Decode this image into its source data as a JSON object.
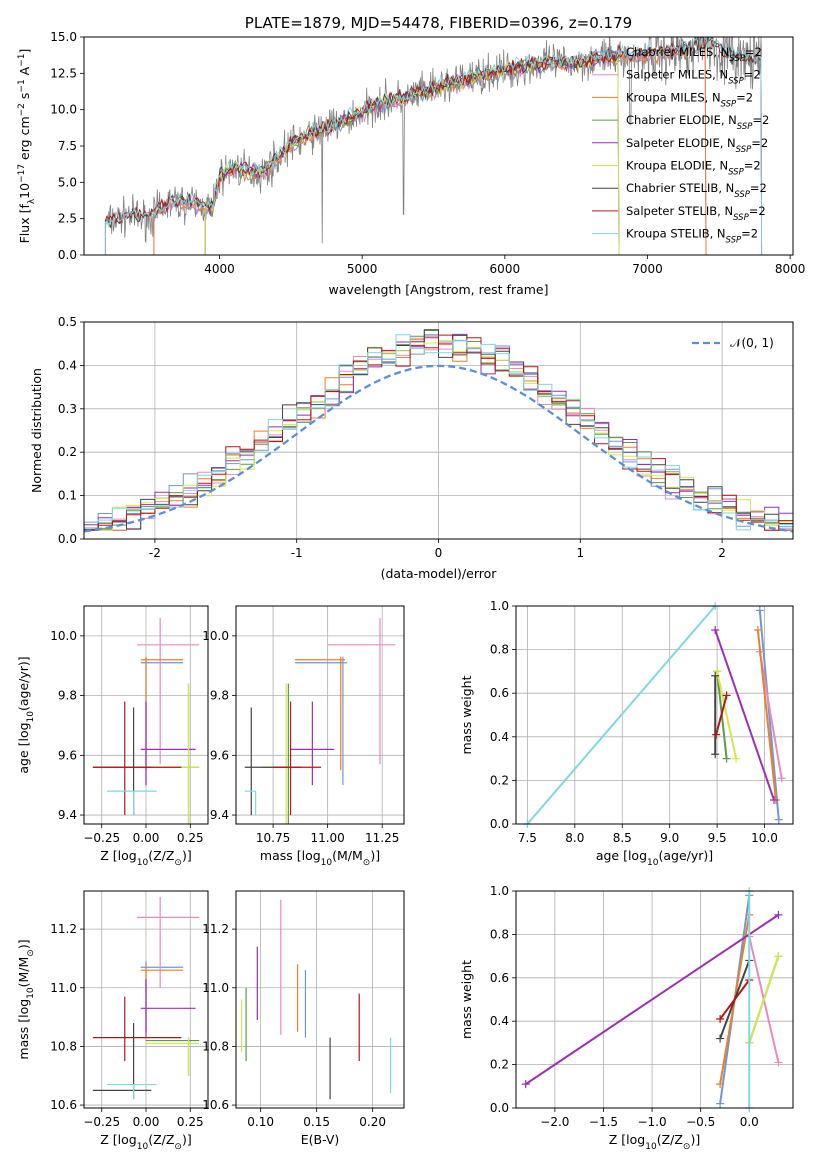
{
  "colors": {
    "Chabrier MILES": "#6f97d8",
    "Salpeter MILES": "#e68ac3",
    "Kroupa MILES": "#ec7f2a",
    "Chabrier ELODIE": "#5c9a4c",
    "Salpeter ELODIE": "#9b2fb3",
    "Kroupa ELODIE": "#d4e84d",
    "Chabrier STELIB": "#444444",
    "Salpeter STELIB": "#b01818",
    "Kroupa STELIB": "#7fd7e0",
    "data": "#808080",
    "gaussian": "#5b8fd8"
  },
  "chart_data": [
    {
      "id": "spectrum",
      "type": "line",
      "title": "PLATE=1879, MJD=54478, FIBERID=0396, z=0.179",
      "xlabel": "wavelength [Angstrom, rest frame]",
      "ylabel": "Flux [f",
      "ylabel_sub": "λ",
      "ylabel_rest": "10",
      "ylabel_sup": "−17",
      "ylabel_units": " erg cm",
      "ylabel_sup2": "−2",
      "ylabel_units2": " s",
      "ylabel_sup3": "−1",
      "ylabel_units3": " A",
      "ylabel_sup4": "−1",
      "ylabel_end": "]",
      "xlim": [
        3050,
        8020
      ],
      "ylim": [
        0,
        15
      ],
      "xticks": [
        4000,
        5000,
        6000,
        7000,
        8000
      ],
      "yticks": [
        0.0,
        2.5,
        5.0,
        7.5,
        10.0,
        12.5,
        15.0
      ],
      "ytick_labels": [
        "0.0",
        "2.5",
        "5.0",
        "7.5",
        "10.0",
        "12.5",
        "15.0"
      ],
      "legend_position": "upper right",
      "legend": [
        {
          "main": "Chabrier MILES, N",
          "sub": "SSP",
          "tail": "=2"
        },
        {
          "main": "Salpeter MILES, N",
          "sub": "SSP",
          "tail": "=2"
        },
        {
          "main": "Kroupa MILES, N",
          "sub": "SSP",
          "tail": "=2"
        },
        {
          "main": "Chabrier ELODIE, N",
          "sub": "SSP",
          "tail": "=2"
        },
        {
          "main": "Salpeter ELODIE, N",
          "sub": "SSP",
          "tail": "=2"
        },
        {
          "main": "Kroupa ELODIE, N",
          "sub": "SSP",
          "tail": "=2"
        },
        {
          "main": "Chabrier STELIB, N",
          "sub": "SSP",
          "tail": "=2"
        },
        {
          "main": "Salpeter STELIB, N",
          "sub": "SSP",
          "tail": "=2"
        },
        {
          "main": "Kroupa STELIB, N",
          "sub": "SSP",
          "tail": "=2"
        }
      ],
      "model_range": {
        "MILES": [
          3540,
          7410
        ],
        "ELODIE": [
          3900,
          6800
        ],
        "STELIB": [
          3200,
          7800
        ]
      },
      "continuum": [
        [
          3200,
          2.2
        ],
        [
          3350,
          2.7
        ],
        [
          3500,
          2.5
        ],
        [
          3650,
          3.6
        ],
        [
          3800,
          3.6
        ],
        [
          3950,
          3.2
        ],
        [
          4000,
          5.3
        ],
        [
          4100,
          6.0
        ],
        [
          4300,
          5.6
        ],
        [
          4500,
          7.6
        ],
        [
          4700,
          8.6
        ],
        [
          4900,
          9.3
        ],
        [
          5100,
          10.4
        ],
        [
          5300,
          10.8
        ],
        [
          5500,
          11.4
        ],
        [
          5700,
          12.0
        ],
        [
          5900,
          12.5
        ],
        [
          6100,
          12.9
        ],
        [
          6300,
          13.2
        ],
        [
          6500,
          13.2
        ],
        [
          6700,
          13.6
        ],
        [
          6900,
          13.7
        ],
        [
          7100,
          13.9
        ],
        [
          7300,
          14.2
        ],
        [
          7400,
          14.8
        ],
        [
          7600,
          13.6
        ],
        [
          7800,
          13.3
        ]
      ]
    },
    {
      "id": "residual-hist",
      "type": "histogram",
      "xlabel": "(data-model)/error",
      "ylabel": "Normed distribution",
      "xlim": [
        -2.5,
        2.5
      ],
      "ylim": [
        0,
        0.5
      ],
      "xticks": [
        -2,
        -1,
        0,
        1,
        2
      ],
      "yticks": [
        0.0,
        0.1,
        0.2,
        0.3,
        0.4,
        0.5
      ],
      "ytick_labels": [
        "0.0",
        "0.1",
        "0.2",
        "0.3",
        "0.4",
        "0.5"
      ],
      "legend": "𝒩(0, 1)",
      "legend_position": "upper right",
      "gaussian": {
        "mu": 0,
        "sigma": 1
      },
      "bin_width": 0.1
    },
    {
      "id": "age-vs-z",
      "type": "scatter",
      "xlabel_main": "Z [log",
      "xlabel_sub": "10",
      "xlabel_rest": "(Z/Z",
      "xlabel_sub2": "⊙",
      "xlabel_end": ")]",
      "ylabel_main": "age  [log",
      "ylabel_sub": "10",
      "ylabel_rest": "(age/yr)]",
      "xlim": [
        -0.35,
        0.35
      ],
      "ylim": [
        9.37,
        10.1
      ],
      "xticks": [
        -0.25,
        0.0,
        0.25
      ],
      "xtick_labels": [
        "−0.25",
        "0.00",
        "0.25"
      ],
      "yticks": [
        9.4,
        9.6,
        9.8,
        10.0
      ],
      "ytick_labels": [
        "9.4",
        "9.6",
        "9.8",
        "10.0"
      ]
    },
    {
      "id": "age-vs-mass",
      "type": "scatter",
      "xlabel_main": "mass [log",
      "xlabel_sub": "10",
      "xlabel_rest": "(M/M",
      "xlabel_sub2": "⊙",
      "xlabel_end": ")]",
      "xlim": [
        10.58,
        11.35
      ],
      "ylim": [
        9.37,
        10.1
      ],
      "xticks": [
        10.75,
        11.0,
        11.25
      ],
      "xtick_labels": [
        "10.75",
        "11.00",
        "11.25"
      ],
      "yticks": [
        9.4,
        9.6,
        9.8,
        10.0
      ],
      "ytick_labels": [
        "9.4",
        "9.6",
        "9.8",
        "10.0"
      ]
    },
    {
      "id": "weight-vs-age",
      "type": "line",
      "xlabel_main": "age  [log",
      "xlabel_sub": "10",
      "xlabel_rest": "(age/yr)]",
      "ylabel": "mass weight",
      "xlim": [
        7.38,
        10.3
      ],
      "ylim": [
        0,
        1
      ],
      "xticks": [
        7.5,
        8.0,
        8.5,
        9.0,
        9.5,
        10.0
      ],
      "xtick_labels": [
        "7.5",
        "8.0",
        "8.5",
        "9.0",
        "9.5",
        "10.0"
      ],
      "yticks": [
        0.0,
        0.2,
        0.4,
        0.6,
        0.8,
        1.0
      ],
      "ytick_labels": [
        "0.0",
        "0.2",
        "0.4",
        "0.6",
        "0.8",
        "1.0"
      ],
      "series": [
        {
          "model": "Chabrier MILES",
          "x": [
            9.95,
            10.15
          ],
          "y": [
            0.98,
            0.02
          ]
        },
        {
          "model": "Salpeter MILES",
          "x": [
            9.95,
            10.18
          ],
          "y": [
            0.79,
            0.21
          ]
        },
        {
          "model": "Kroupa MILES",
          "x": [
            9.93,
            10.12
          ],
          "y": [
            0.89,
            0.11
          ]
        },
        {
          "model": "Chabrier ELODIE",
          "x": [
            9.5,
            9.6
          ],
          "y": [
            0.7,
            0.3
          ]
        },
        {
          "model": "Salpeter ELODIE",
          "x": [
            9.48,
            10.1
          ],
          "y": [
            0.89,
            0.11
          ]
        },
        {
          "model": "Kroupa ELODIE",
          "x": [
            9.5,
            9.7
          ],
          "y": [
            0.7,
            0.3
          ]
        },
        {
          "model": "Chabrier STELIB",
          "x": [
            9.48,
            9.48
          ],
          "y": [
            0.68,
            0.32
          ]
        },
        {
          "model": "Salpeter STELIB",
          "x": [
            9.49,
            9.6
          ],
          "y": [
            0.41,
            0.59
          ]
        },
        {
          "model": "Kroupa STELIB",
          "x": [
            7.5,
            9.48
          ],
          "y": [
            0.0,
            1.0
          ]
        }
      ]
    },
    {
      "id": "mass-vs-z",
      "type": "scatter",
      "xlabel_main": "Z [log",
      "xlabel_sub": "10",
      "xlabel_rest": "(Z/Z",
      "xlabel_sub2": "⊙",
      "xlabel_end": ")]",
      "ylabel_main": "mass [log",
      "ylabel_sub": "10",
      "ylabel_rest": "(M/M",
      "ylabel_sub2": "⊙",
      "ylabel_end": ")]",
      "xlim": [
        -0.35,
        0.35
      ],
      "ylim": [
        10.59,
        11.33
      ],
      "xticks": [
        -0.25,
        0.0,
        0.25
      ],
      "xtick_labels": [
        "−0.25",
        "0.00",
        "0.25"
      ],
      "yticks": [
        10.6,
        10.8,
        11.0,
        11.2
      ],
      "ytick_labels": [
        "10.6",
        "10.8",
        "11.0",
        "11.2"
      ]
    },
    {
      "id": "mass-vs-ebv",
      "type": "errorbar",
      "xlabel": "E(B-V)",
      "xlim": [
        0.078,
        0.228
      ],
      "ylim": [
        10.59,
        11.33
      ],
      "xticks": [
        0.1,
        0.15,
        0.2
      ],
      "xtick_labels": [
        "0.10",
        "0.15",
        "0.20"
      ],
      "yticks": [
        10.6,
        10.8,
        11.0,
        11.2
      ],
      "ytick_labels": [
        "10.6",
        "10.8",
        "11.0",
        "11.2"
      ]
    },
    {
      "id": "weight-vs-z",
      "type": "line",
      "xlabel_main": "Z [log",
      "xlabel_sub": "10",
      "xlabel_rest": "(Z/Z",
      "xlabel_sub2": "⊙",
      "xlabel_end": ")]",
      "ylabel": "mass weight",
      "xlim": [
        -2.4,
        0.45
      ],
      "ylim": [
        0,
        1
      ],
      "xticks": [
        -2.0,
        -1.5,
        -1.0,
        -0.5,
        0.0
      ],
      "xtick_labels": [
        "−2.0",
        "−1.5",
        "−1.0",
        "−0.5",
        "0.0"
      ],
      "yticks": [
        0.0,
        0.2,
        0.4,
        0.6,
        0.8,
        1.0
      ],
      "ytick_labels": [
        "0.0",
        "0.2",
        "0.4",
        "0.6",
        "0.8",
        "1.0"
      ],
      "series": [
        {
          "model": "Chabrier MILES",
          "x": [
            -0.3,
            0.0
          ],
          "y": [
            0.02,
            0.98
          ]
        },
        {
          "model": "Salpeter MILES",
          "x": [
            0.0,
            0.3
          ],
          "y": [
            0.79,
            0.21
          ]
        },
        {
          "model": "Kroupa MILES",
          "x": [
            -0.3,
            0.0
          ],
          "y": [
            0.11,
            0.89
          ]
        },
        {
          "model": "Chabrier ELODIE",
          "x": [
            0.0,
            0.3
          ],
          "y": [
            0.3,
            0.7
          ]
        },
        {
          "model": "Salpeter ELODIE",
          "x": [
            -2.3,
            0.3
          ],
          "y": [
            0.11,
            0.89
          ]
        },
        {
          "model": "Kroupa ELODIE",
          "x": [
            0.0,
            0.3
          ],
          "y": [
            0.3,
            0.7
          ]
        },
        {
          "model": "Chabrier STELIB",
          "x": [
            -0.3,
            0.0
          ],
          "y": [
            0.32,
            0.68
          ]
        },
        {
          "model": "Salpeter STELIB",
          "x": [
            -0.3,
            0.0
          ],
          "y": [
            0.41,
            0.59
          ]
        },
        {
          "model": "Kroupa STELIB",
          "x": [
            0.0,
            0.0
          ],
          "y": [
            0.0,
            1.0
          ]
        }
      ]
    }
  ],
  "fits": [
    {
      "model": "Chabrier MILES",
      "Z": 0.0,
      "Z_lo": -0.03,
      "Z_hi": 0.21,
      "age": 9.91,
      "age_lo": 9.5,
      "age_hi": 9.93,
      "mass": 11.07,
      "mass_lo": 10.85,
      "mass_hi": 11.09,
      "ebv": 0.14,
      "ebv_lo": 10.83,
      "ebv_hi": 11.06
    },
    {
      "model": "Salpeter MILES",
      "Z": 0.08,
      "Z_lo": -0.05,
      "Z_hi": 0.3,
      "age": 9.97,
      "age_lo": 9.57,
      "age_hi": 10.06,
      "mass": 11.24,
      "mass_lo": 11.0,
      "mass_hi": 11.31,
      "ebv": 0.118,
      "ebv_lo": 10.84,
      "ebv_hi": 11.3
    },
    {
      "model": "Kroupa MILES",
      "Z": 0.0,
      "Z_lo": -0.03,
      "Z_hi": 0.21,
      "age": 9.92,
      "age_lo": 9.55,
      "age_hi": 9.93,
      "mass": 11.06,
      "mass_lo": 10.85,
      "mass_hi": 11.08,
      "ebv": 0.133,
      "ebv_lo": 10.85,
      "ebv_hi": 11.08
    },
    {
      "model": "Chabrier ELODIE",
      "Z": 0.24,
      "Z_lo": 0.0,
      "Z_hi": 0.3,
      "age": 9.56,
      "age_lo": 9.28,
      "age_hi": 9.84,
      "mass": 10.82,
      "mass_lo": 10.7,
      "mass_hi": 10.83,
      "ebv": 0.087,
      "ebv_lo": 10.75,
      "ebv_hi": 11.0
    },
    {
      "model": "Salpeter ELODIE",
      "Z": 0.0,
      "Z_lo": -0.03,
      "Z_hi": 0.28,
      "age": 9.62,
      "age_lo": 9.5,
      "age_hi": 9.78,
      "mass": 10.93,
      "mass_lo": 10.83,
      "mass_hi": 11.03,
      "ebv": 0.097,
      "ebv_lo": 10.89,
      "ebv_hi": 11.14
    },
    {
      "model": "Kroupa ELODIE",
      "Z": 0.24,
      "Z_lo": 0.0,
      "Z_hi": 0.3,
      "age": 9.56,
      "age_lo": 9.3,
      "age_hi": 9.84,
      "mass": 10.81,
      "mass_lo": 10.7,
      "mass_hi": 10.83,
      "ebv": 0.083,
      "ebv_lo": 10.78,
      "ebv_hi": 10.96
    },
    {
      "model": "Chabrier STELIB",
      "Z": -0.07,
      "Z_lo": -0.3,
      "Z_hi": 0.03,
      "age": 9.56,
      "age_lo": 9.4,
      "age_hi": 9.76,
      "mass": 10.65,
      "mass_lo": 10.62,
      "mass_hi": 10.88,
      "ebv": 0.162,
      "ebv_lo": 10.62,
      "ebv_hi": 10.83
    },
    {
      "model": "Salpeter STELIB",
      "Z": -0.12,
      "Z_lo": -0.3,
      "Z_hi": 0.2,
      "age": 9.56,
      "age_lo": 9.4,
      "age_hi": 9.78,
      "mass": 10.83,
      "mass_lo": 10.75,
      "mass_hi": 10.97,
      "ebv": 0.188,
      "ebv_lo": 10.75,
      "ebv_hi": 10.98
    },
    {
      "model": "Kroupa STELIB",
      "Z": -0.07,
      "Z_lo": -0.22,
      "Z_hi": 0.06,
      "age": 9.48,
      "age_lo": 9.4,
      "age_hi": 9.48,
      "mass": 10.67,
      "mass_lo": 10.62,
      "mass_hi": 10.67,
      "ebv": 0.216,
      "ebv_lo": 10.64,
      "ebv_hi": 10.83
    }
  ]
}
